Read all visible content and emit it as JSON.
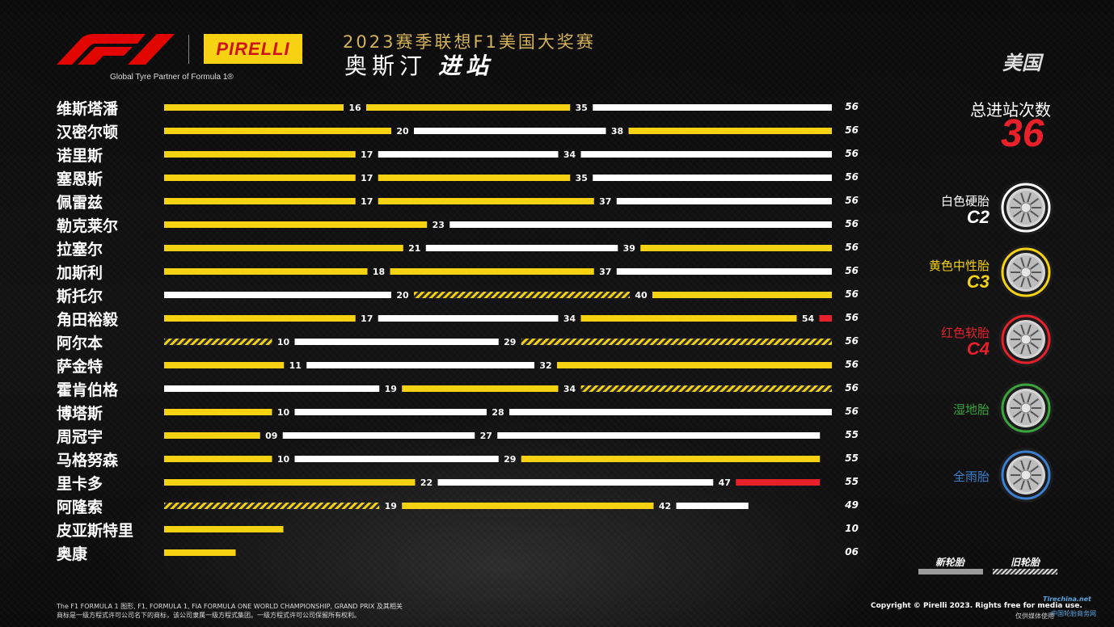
{
  "header": {
    "partner_text": "Global Tyre Partner of Formula 1®",
    "pirelli_logo": "PIRELLI",
    "event_title": "2023赛季联想F1美国大奖赛",
    "city": "奥斯汀",
    "subtitle": "进站",
    "country": "美国"
  },
  "summary": {
    "stops_label": "总进站次数",
    "stops_value": "36"
  },
  "compounds": [
    {
      "name": "白色硬胎",
      "code": "C2",
      "color": "#ffffff"
    },
    {
      "name": "黄色中性胎",
      "code": "C3",
      "color": "#f6d213"
    },
    {
      "name": "红色软胎",
      "code": "C4",
      "color": "#e8202a"
    },
    {
      "name": "湿地胎",
      "code": "",
      "color": "#3aa53a"
    },
    {
      "name": "全雨胎",
      "code": "",
      "color": "#3a7fd0"
    }
  ],
  "legend": {
    "new_label": "新轮胎",
    "used_label": "旧轮胎"
  },
  "footer": {
    "left_line1": "The F1 FORMULA 1 图形, F1, FORMULA 1, FIA FORMULA ONE WORLD CHAMPIONSHIP, GRAND PRIX 及其相关",
    "left_line2": "商标是一级方程式许可公司名下的商标，该公司隶属一级方程式集团。一级方程式许可公司保留所有权利。",
    "right": "Copyright © Pirelli 2023. Rights free for media use.",
    "right2": "仅供媒体使用"
  },
  "watermark": {
    "text": "Tirechina.net",
    "text2": "中国轮胎商务网"
  },
  "chart_data": {
    "type": "bar",
    "orientation": "horizontal-stacked-stints",
    "x_unit": "laps",
    "xlim": [
      0,
      56
    ],
    "colors": {
      "H": "#ffffff",
      "M": "#f6d213",
      "S": "#e8202a"
    },
    "drivers": [
      {
        "name": "维斯塔潘",
        "total": "56",
        "stints": [
          {
            "c": "M",
            "end": 16,
            "label": "16",
            "used": false
          },
          {
            "c": "M",
            "end": 35,
            "label": "35",
            "used": false
          },
          {
            "c": "H",
            "end": 56,
            "label": "",
            "used": false
          }
        ]
      },
      {
        "name": "汉密尔顿",
        "total": "56",
        "stints": [
          {
            "c": "M",
            "end": 20,
            "label": "20",
            "used": false
          },
          {
            "c": "H",
            "end": 38,
            "label": "38",
            "used": false
          },
          {
            "c": "M",
            "end": 56,
            "label": "",
            "used": false
          }
        ]
      },
      {
        "name": "诺里斯",
        "total": "56",
        "stints": [
          {
            "c": "M",
            "end": 17,
            "label": "17",
            "used": false
          },
          {
            "c": "H",
            "end": 34,
            "label": "34",
            "used": false
          },
          {
            "c": "H",
            "end": 56,
            "label": "",
            "used": false
          }
        ]
      },
      {
        "name": "塞恩斯",
        "total": "56",
        "stints": [
          {
            "c": "M",
            "end": 17,
            "label": "17",
            "used": false
          },
          {
            "c": "M",
            "end": 35,
            "label": "35",
            "used": false
          },
          {
            "c": "H",
            "end": 56,
            "label": "",
            "used": false
          }
        ]
      },
      {
        "name": "佩雷兹",
        "total": "56",
        "stints": [
          {
            "c": "M",
            "end": 17,
            "label": "17",
            "used": false
          },
          {
            "c": "M",
            "end": 37,
            "label": "37",
            "used": false
          },
          {
            "c": "H",
            "end": 56,
            "label": "",
            "used": false
          }
        ]
      },
      {
        "name": "勒克莱尔",
        "total": "56",
        "stints": [
          {
            "c": "M",
            "end": 23,
            "label": "23",
            "used": false
          },
          {
            "c": "H",
            "end": 56,
            "label": "",
            "used": false
          }
        ]
      },
      {
        "name": "拉塞尔",
        "total": "56",
        "stints": [
          {
            "c": "M",
            "end": 21,
            "label": "21",
            "used": false
          },
          {
            "c": "H",
            "end": 39,
            "label": "39",
            "used": false
          },
          {
            "c": "M",
            "end": 56,
            "label": "",
            "used": false
          }
        ]
      },
      {
        "name": "加斯利",
        "total": "56",
        "stints": [
          {
            "c": "M",
            "end": 18,
            "label": "18",
            "used": false
          },
          {
            "c": "M",
            "end": 37,
            "label": "37",
            "used": false
          },
          {
            "c": "H",
            "end": 56,
            "label": "",
            "used": false
          }
        ]
      },
      {
        "name": "斯托尔",
        "total": "56",
        "stints": [
          {
            "c": "H",
            "end": 20,
            "label": "20",
            "used": false
          },
          {
            "c": "M",
            "end": 40,
            "label": "40",
            "used": true
          },
          {
            "c": "M",
            "end": 56,
            "label": "",
            "used": false
          }
        ]
      },
      {
        "name": "角田裕毅",
        "total": "56",
        "stints": [
          {
            "c": "M",
            "end": 17,
            "label": "17",
            "used": false
          },
          {
            "c": "H",
            "end": 34,
            "label": "34",
            "used": false
          },
          {
            "c": "M",
            "end": 54,
            "label": "54",
            "used": false
          },
          {
            "c": "S",
            "end": 56,
            "label": "",
            "used": false
          }
        ]
      },
      {
        "name": "阿尔本",
        "total": "56",
        "stints": [
          {
            "c": "M",
            "end": 10,
            "label": "10",
            "used": true
          },
          {
            "c": "H",
            "end": 29,
            "label": "29",
            "used": false
          },
          {
            "c": "M",
            "end": 56,
            "label": "",
            "used": true
          }
        ]
      },
      {
        "name": "萨金特",
        "total": "56",
        "stints": [
          {
            "c": "M",
            "end": 11,
            "label": "11",
            "used": false
          },
          {
            "c": "H",
            "end": 32,
            "label": "32",
            "used": false
          },
          {
            "c": "M",
            "end": 56,
            "label": "",
            "used": false
          }
        ]
      },
      {
        "name": "霍肯伯格",
        "total": "56",
        "stints": [
          {
            "c": "H",
            "end": 19,
            "label": "19",
            "used": false
          },
          {
            "c": "M",
            "end": 34,
            "label": "34",
            "used": false
          },
          {
            "c": "M",
            "end": 56,
            "label": "",
            "used": true
          }
        ]
      },
      {
        "name": "博塔斯",
        "total": "56",
        "stints": [
          {
            "c": "M",
            "end": 10,
            "label": "10",
            "used": false
          },
          {
            "c": "H",
            "end": 28,
            "label": "28",
            "used": false
          },
          {
            "c": "H",
            "end": 56,
            "label": "",
            "used": false
          }
        ]
      },
      {
        "name": "周冠宇",
        "total": "55",
        "stints": [
          {
            "c": "M",
            "end": 9,
            "label": "09",
            "used": false
          },
          {
            "c": "H",
            "end": 27,
            "label": "27",
            "used": false
          },
          {
            "c": "H",
            "end": 55,
            "label": "",
            "used": false
          }
        ]
      },
      {
        "name": "马格努森",
        "total": "55",
        "stints": [
          {
            "c": "M",
            "end": 10,
            "label": "10",
            "used": false
          },
          {
            "c": "H",
            "end": 29,
            "label": "29",
            "used": false
          },
          {
            "c": "M",
            "end": 55,
            "label": "",
            "used": false
          }
        ]
      },
      {
        "name": "里卡多",
        "total": "55",
        "stints": [
          {
            "c": "M",
            "end": 22,
            "label": "22",
            "used": false
          },
          {
            "c": "H",
            "end": 47,
            "label": "47",
            "used": false
          },
          {
            "c": "S",
            "end": 55,
            "label": "",
            "used": false
          }
        ]
      },
      {
        "name": "阿隆索",
        "total": "49",
        "stints": [
          {
            "c": "M",
            "end": 19,
            "label": "19",
            "used": true
          },
          {
            "c": "M",
            "end": 42,
            "label": "42",
            "used": false
          },
          {
            "c": "H",
            "end": 49,
            "label": "",
            "used": false
          }
        ]
      },
      {
        "name": "皮亚斯特里",
        "total": "10",
        "stints": [
          {
            "c": "M",
            "end": 10,
            "label": "",
            "used": false
          }
        ]
      },
      {
        "name": "奥康",
        "total": "06",
        "stints": [
          {
            "c": "M",
            "end": 6,
            "label": "",
            "used": false
          }
        ]
      }
    ]
  }
}
